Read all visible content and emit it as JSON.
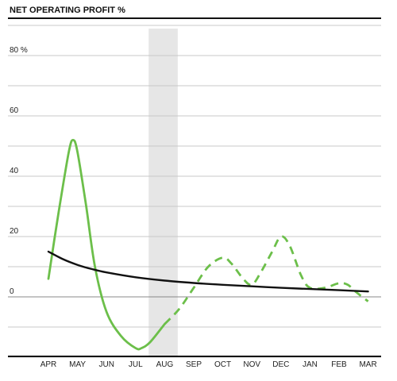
{
  "chart_data": {
    "type": "line",
    "title": "NET OPERATING PROFIT %",
    "categories": [
      "APR",
      "MAY",
      "JUN",
      "JUL",
      "AUG",
      "SEP",
      "OCT",
      "NOV",
      "DEC",
      "JAN",
      "FEB",
      "MAR"
    ],
    "y_ticks": [
      {
        "value": 80,
        "label": "80 %"
      },
      {
        "value": 60,
        "label": "60"
      },
      {
        "value": 40,
        "label": "40"
      },
      {
        "value": 20,
        "label": "20"
      },
      {
        "value": 0,
        "label": "0"
      }
    ],
    "ylim": [
      -20,
      90
    ],
    "grid": true,
    "highlight_band": {
      "from": 3.45,
      "to": 4.45,
      "color": "#e6e6e6"
    },
    "series": [
      {
        "color": "#111111",
        "style": "solid",
        "points": [
          [
            0,
            15
          ],
          [
            0.5,
            12.5
          ],
          [
            1,
            10.6
          ],
          [
            1.5,
            9.2
          ],
          [
            2,
            8.1
          ],
          [
            3,
            6.5
          ],
          [
            4,
            5.4
          ],
          [
            5,
            4.6
          ],
          [
            6,
            4.0
          ],
          [
            7,
            3.5
          ],
          [
            8,
            3.0
          ],
          [
            9,
            2.6
          ],
          [
            10,
            2.2
          ],
          [
            11,
            1.8
          ]
        ]
      },
      {
        "color": "#6cbf4a",
        "style": "solid",
        "points": [
          [
            0,
            6
          ],
          [
            0.35,
            28
          ],
          [
            0.7,
            48
          ],
          [
            0.85,
            52
          ],
          [
            1,
            48
          ],
          [
            1.3,
            30
          ],
          [
            1.6,
            10
          ],
          [
            2,
            -5
          ],
          [
            2.5,
            -13
          ],
          [
            3,
            -17
          ],
          [
            3.2,
            -17
          ],
          [
            3.5,
            -15
          ],
          [
            4,
            -9
          ]
        ]
      },
      {
        "color": "#6cbf4a",
        "style": "dashed",
        "points": [
          [
            4,
            -9
          ],
          [
            4.5,
            -4
          ],
          [
            5,
            3
          ],
          [
            5.5,
            10
          ],
          [
            6,
            13
          ],
          [
            6.3,
            11
          ],
          [
            6.7,
            6
          ],
          [
            7,
            4
          ],
          [
            7.3,
            8
          ],
          [
            7.7,
            15
          ],
          [
            8,
            20
          ],
          [
            8.3,
            17
          ],
          [
            8.7,
            7
          ],
          [
            9,
            3
          ],
          [
            9.5,
            3
          ],
          [
            10,
            4.5
          ],
          [
            10.3,
            4
          ],
          [
            10.6,
            1.5
          ],
          [
            11,
            -1.5
          ]
        ]
      }
    ]
  }
}
